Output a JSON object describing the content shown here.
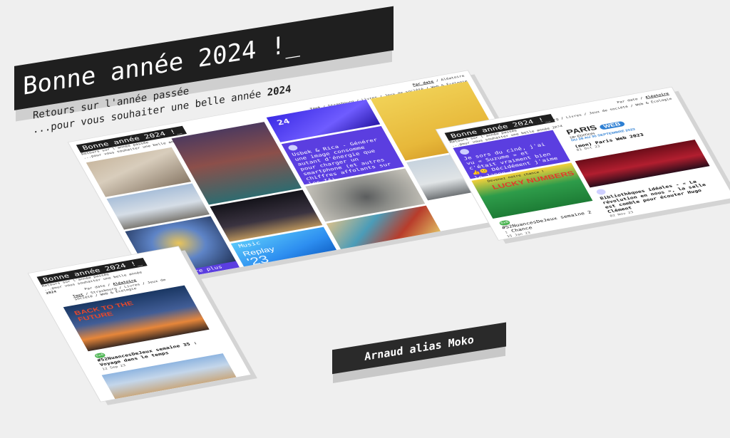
{
  "hero": {
    "title": "Bonne année 2024 !_",
    "sub1": "Retours sur l'année passée",
    "sub2_prefix": "...pour vous souhaiter une belle année ",
    "sub2_year": "2024"
  },
  "author": "Arnaud alias Moko",
  "main_panel": {
    "title": "Bonne année 2024 !_",
    "sub1": "Retours sur l'année passée",
    "sub2": "...pour vous souhaiter une belle année 2024",
    "sort": {
      "active": "Par date",
      "sep": "/",
      "other": "Aléatoire"
    },
    "filters": {
      "active": "Tout",
      "rest": "/ Strasbourg / Livres / Jeux de société / Web & Écologie"
    },
    "cards": {
      "usbek_text": "Usbek & Rica - Générer une image consomme autant d'énergie que pour charger un smartphone (et autres chiffres affolants sur les IA)",
      "event_label": "24",
      "replay": "Replay",
      "replay_year": "'23",
      "music": "Music",
      "bottom_text": "d'hui encore plus"
    }
  },
  "right_panel": {
    "title": "Bonne année 2024 !_",
    "sub1": "Retours sur l'année passée",
    "sub2": "...pour vous souhaiter une belle année 2024",
    "sort": {
      "left": "Par date",
      "sep": "/",
      "active": "Aléatoire"
    },
    "filters": {
      "active": "Tout",
      "rest": "/ Strasbourg / Livres / Jeux de société / Web & Écologie"
    },
    "purple_text": "Je sors du ciné, j'ai vu « Suzume » et c'était vraiment bien 👍😊 Décidément j'aime le Japon !",
    "paris_web": {
      "brand": "PARIS",
      "web": "WEB",
      "edition": "18ᵉ ÉDITION",
      "dates": "DU 28 AU 30 SEPTEMBRE 2023",
      "title": "(mon) Paris Web 2023",
      "date": "01 Oct 23"
    },
    "lucky": {
      "header": "Devenez notre chance !",
      "logo": "LUCKY NUMBERS",
      "tag": "6x6",
      "title": "#52NuancesDeJeux semaine 2 : Chance",
      "date": "15 Jan 23"
    },
    "biblio": {
      "title": "Bibliothèques idéales - « La révolution en nous », la salle est comble pour écouter Hugo Clément",
      "date": "02 Nov 23"
    }
  },
  "left_panel": {
    "title": "Bonne année 2024 !_",
    "sub1": "Retours sur l'année passée",
    "sub2": "...pour vous souhaiter une belle année",
    "sub3": "2024",
    "sort": {
      "left": "Par date",
      "sep": "/",
      "active": "Aléatoire"
    },
    "filters": {
      "active": "Tout",
      "rest": "/ Strasbourg / Livres / Jeux de société / Web & Écologie"
    },
    "bttf": "BACK TO THE FUTURE",
    "tag": "6x6",
    "card_title": "#52NuancesDeJeux semaine 35 : Voyage dans le temps",
    "card_date": "12 Sep 23"
  },
  "colors": {
    "accent": "#5b3ee0",
    "dark": "#1f1f1f",
    "green": "#49b34f"
  }
}
